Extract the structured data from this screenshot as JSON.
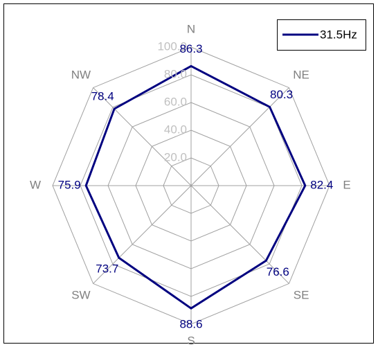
{
  "chart_data": {
    "type": "radar",
    "categories": [
      "N",
      "NE",
      "E",
      "SE",
      "S",
      "SW",
      "W",
      "NW"
    ],
    "series": [
      {
        "name": "31.5Hz",
        "color": "#000080",
        "values": [
          86.3,
          80.3,
          82.4,
          76.6,
          88.6,
          73.7,
          75.9,
          78.4
        ]
      }
    ],
    "ylim": [
      0,
      100
    ],
    "yticks": [
      {
        "value": 20,
        "label": "20.0"
      },
      {
        "value": 40,
        "label": "40.0"
      },
      {
        "value": 60,
        "label": "60.0"
      },
      {
        "value": 80,
        "label": "80.0"
      },
      {
        "value": 100,
        "label": "100.0"
      }
    ],
    "grid": true,
    "legend": "top-right"
  }
}
